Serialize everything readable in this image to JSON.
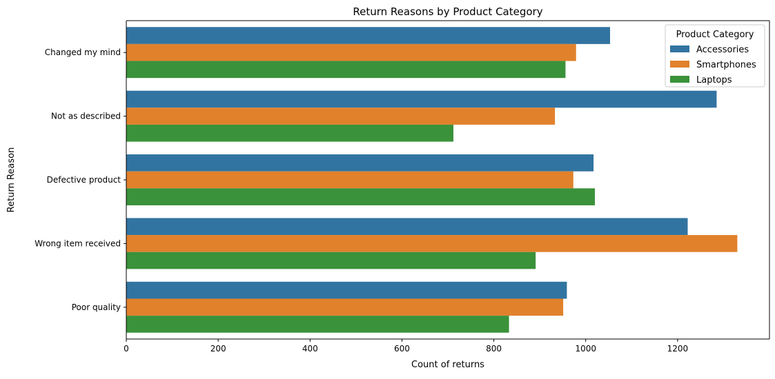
{
  "chart_data": {
    "type": "bar",
    "orientation": "horizontal",
    "title": "Return Reasons by Product Category",
    "xlabel": "Count of returns",
    "ylabel": "Return Reason",
    "xlim": [
      0,
      1400
    ],
    "xticks": [
      0,
      200,
      400,
      600,
      800,
      1000,
      1200
    ],
    "grid": false,
    "legend": {
      "title": "Product Category",
      "placement": "top-right"
    },
    "categories": [
      "Changed my mind",
      "Not as described",
      "Defective product",
      "Wrong item received",
      "Poor quality"
    ],
    "series": [
      {
        "name": "Accessories",
        "color": "#3274a1",
        "values": [
          1053,
          1285,
          1017,
          1222,
          959
        ]
      },
      {
        "name": "Smartphones",
        "color": "#e1812c",
        "values": [
          979,
          933,
          973,
          1330,
          951
        ]
      },
      {
        "name": "Laptops",
        "color": "#3a923a",
        "values": [
          956,
          712,
          1020,
          891,
          833
        ]
      }
    ]
  }
}
